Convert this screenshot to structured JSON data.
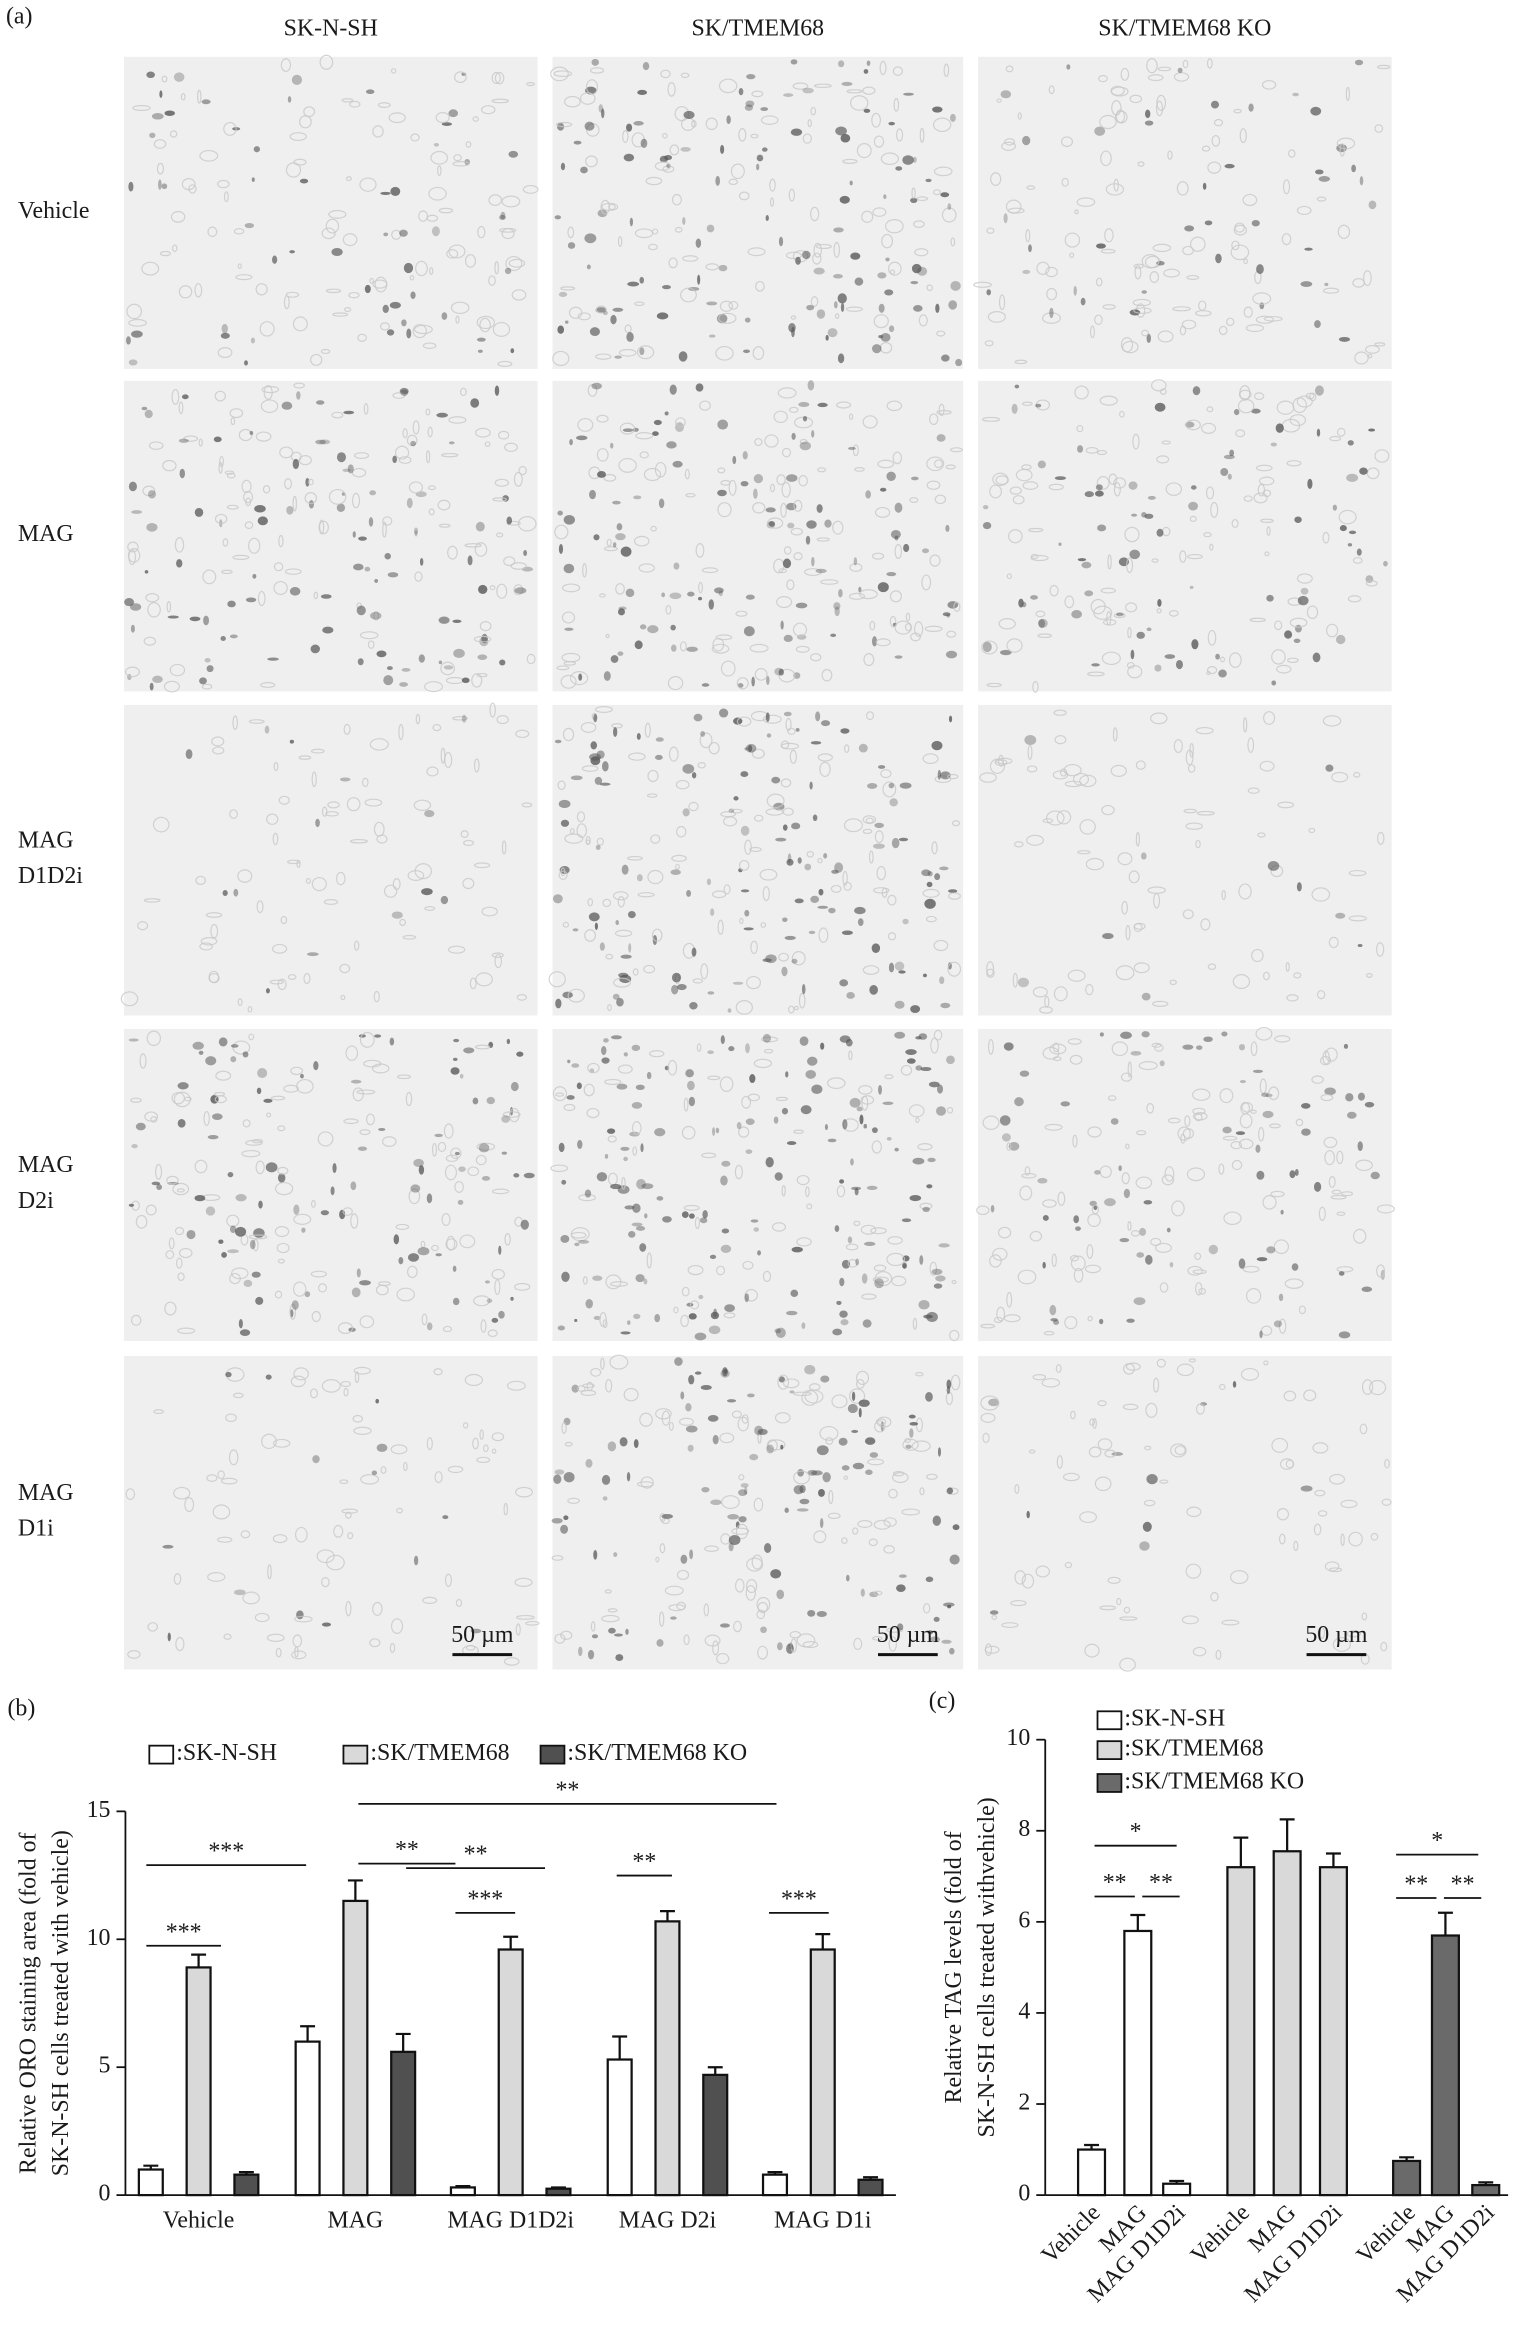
{
  "panel_a": {
    "label": "(a)",
    "columns": [
      "SK-N-SH",
      "SK/TMEM68",
      "SK/TMEM68 KO"
    ],
    "rows": [
      "Vehicle",
      "MAG",
      "MAG D1D2i",
      "MAG D2i",
      "MAG D1i"
    ],
    "scale_bar": "50 µm"
  },
  "chart_data": [
    {
      "type": "bar",
      "panel_label": "(b)",
      "ylabel": [
        "Relative ORO staining area (fold of",
        "SK-N-SH cells treated with vehicle)"
      ],
      "categories": [
        "Vehicle",
        "MAG",
        "MAG D1D2i",
        "MAG D2i",
        "MAG D1i"
      ],
      "series": [
        {
          "name": ":SK-N-SH",
          "color": "#ffffff",
          "values": [
            1.0,
            6.0,
            0.3,
            5.3,
            0.8
          ],
          "errors": [
            0.15,
            0.6,
            0.05,
            0.9,
            0.1
          ]
        },
        {
          "name": ":SK/TMEM68",
          "color": "#d9d9d9",
          "values": [
            8.9,
            11.5,
            9.6,
            10.7,
            9.6
          ],
          "errors": [
            0.5,
            0.8,
            0.5,
            0.4,
            0.6
          ]
        },
        {
          "name": ":SK/TMEM68 KO",
          "color": "#505050",
          "values": [
            0.8,
            5.6,
            0.25,
            4.7,
            0.6
          ],
          "errors": [
            0.1,
            0.7,
            0.05,
            0.3,
            0.1
          ]
        }
      ],
      "ylim": [
        0,
        15
      ],
      "yticks": [
        0,
        5,
        10,
        15
      ],
      "annotations": [
        "***",
        "***",
        "**",
        "**",
        "**",
        "***",
        "**",
        "***"
      ]
    },
    {
      "type": "bar",
      "panel_label": "(c)",
      "ylabel": [
        "Relative TAG levels (fold of",
        "SK-N-SH cells treated withvehicle)"
      ],
      "categories": [
        "Vehicle",
        "MAG",
        "MAG D1D2i",
        "Vehicle",
        "MAG",
        "MAG D1D2i",
        "Vehicle",
        "MAG",
        "MAG D1D2i"
      ],
      "series": [
        {
          "name": ":SK-N-SH",
          "color": "#ffffff",
          "values": [
            1.0,
            5.8,
            0.25,
            null,
            null,
            null,
            null,
            null,
            null
          ],
          "errors": [
            0.1,
            0.35,
            0.06,
            null,
            null,
            null,
            null,
            null,
            null
          ]
        },
        {
          "name": ":SK/TMEM68",
          "color": "#d9d9d9",
          "values": [
            null,
            null,
            null,
            7.2,
            7.55,
            7.2,
            null,
            null,
            null
          ],
          "errors": [
            null,
            null,
            null,
            0.65,
            0.7,
            0.3,
            null,
            null,
            null
          ]
        },
        {
          "name": ":SK/TMEM68 KO",
          "color": "#6a6a6a",
          "values": [
            null,
            null,
            null,
            null,
            null,
            null,
            0.75,
            5.7,
            0.22
          ],
          "errors": [
            null,
            null,
            null,
            null,
            null,
            null,
            0.08,
            0.5,
            0.06
          ]
        }
      ],
      "ylim": [
        0,
        10
      ],
      "yticks": [
        0,
        2,
        4,
        6,
        8,
        10
      ],
      "annotations": [
        "*",
        "**",
        "**",
        "*",
        "**",
        "**"
      ]
    }
  ]
}
